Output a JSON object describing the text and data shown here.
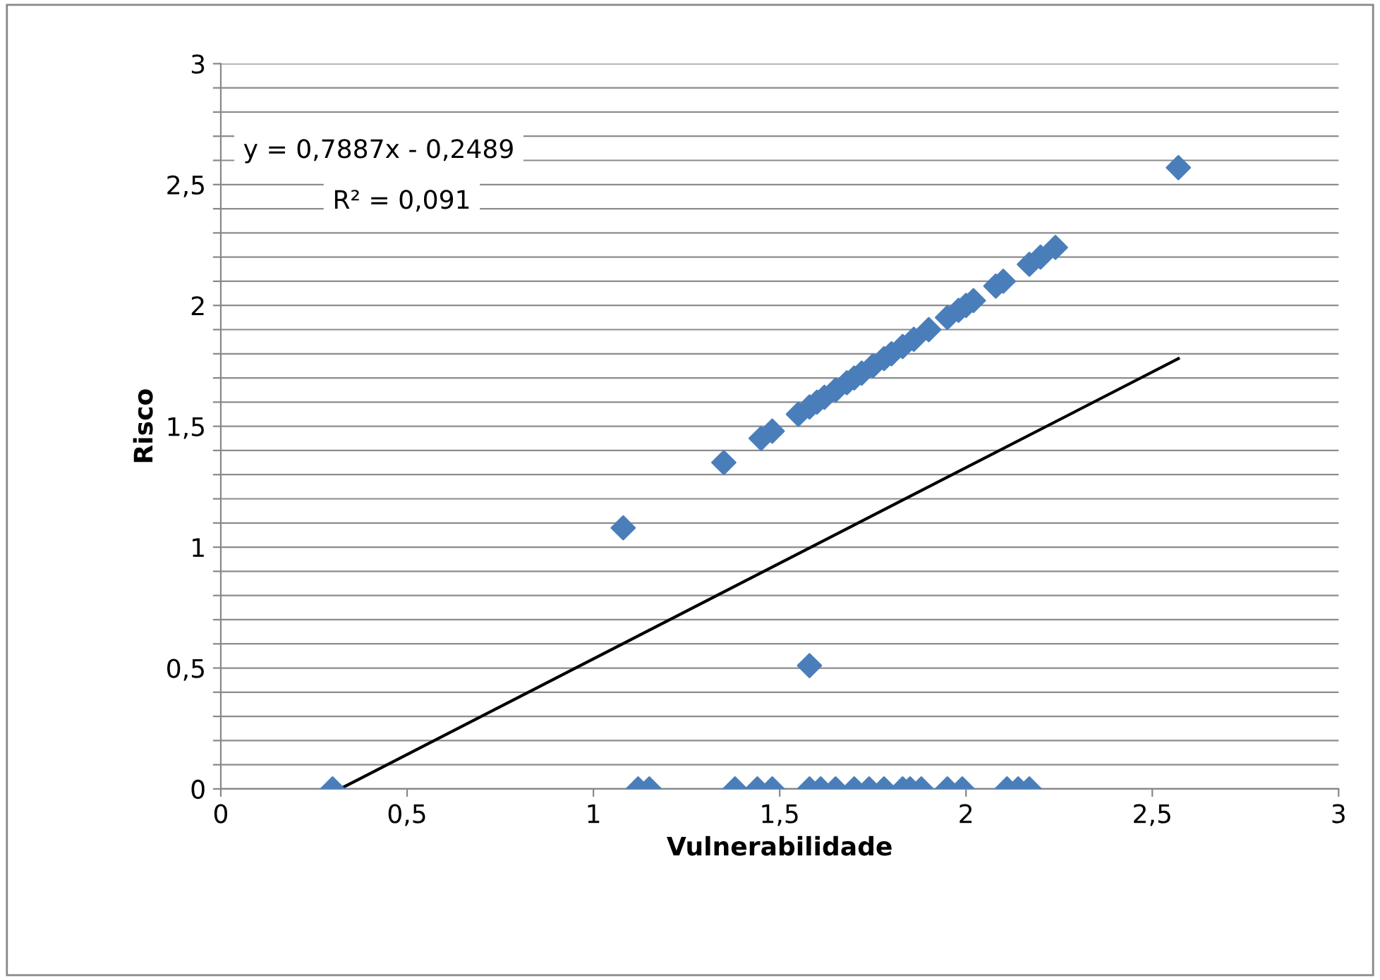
{
  "chart_data": {
    "type": "scatter",
    "xlabel": "Vulnerabilidade",
    "ylabel": "Risco",
    "series": [
      {
        "color": "#4a7ebb",
        "marker": "diamond",
        "x": [
          0.3,
          1.12,
          1.15,
          1.38,
          1.44,
          1.48,
          1.58,
          1.61,
          1.65,
          1.7,
          1.74,
          1.78,
          1.83,
          1.85,
          1.88,
          1.95,
          1.99,
          2.11,
          2.14,
          2.17,
          1.58,
          1.08,
          1.35,
          1.45,
          1.48,
          1.55,
          1.58,
          1.6,
          1.62,
          1.65,
          1.68,
          1.7,
          1.72,
          1.75,
          1.78,
          1.8,
          1.83,
          1.86,
          1.9,
          1.95,
          1.98,
          2.0,
          2.02,
          2.08,
          2.1,
          2.17,
          2.2,
          2.24,
          2.57
        ],
        "values": [
          0,
          0,
          0,
          0,
          0,
          0,
          0,
          0,
          0,
          0,
          0,
          0,
          0,
          0,
          0,
          0,
          0,
          0,
          0,
          0,
          0.51,
          1.08,
          1.35,
          1.45,
          1.48,
          1.55,
          1.58,
          1.6,
          1.62,
          1.65,
          1.68,
          1.7,
          1.72,
          1.75,
          1.78,
          1.8,
          1.83,
          1.86,
          1.9,
          1.95,
          1.98,
          2.0,
          2.02,
          2.08,
          2.1,
          2.17,
          2.2,
          2.24,
          2.57
        ]
      },
      {
        "type": "line",
        "color": "#000000",
        "marker": "none",
        "line_style": "solid",
        "x": [
          0.32,
          2.57
        ],
        "values": [
          0.0,
          1.78
        ]
      }
    ],
    "annotations": [
      "y = 0,7887x - 0,2489",
      "R² = 0,091"
    ],
    "xlim": [
      0,
      3
    ],
    "ylim": [
      0,
      3
    ],
    "xticks": [
      0,
      {
        "value": 0.5,
        "label": "0,5"
      },
      1,
      {
        "value": 1.5,
        "label": "1,5"
      },
      2,
      {
        "value": 2.5,
        "label": "2,5"
      },
      3
    ],
    "yticks": [
      0,
      {
        "value": 0.1,
        "label": null
      },
      {
        "value": 0.2,
        "label": null
      },
      {
        "value": 0.3,
        "label": null
      },
      {
        "value": 0.4,
        "label": null
      },
      {
        "value": 0.5,
        "label": "0,5"
      },
      {
        "value": 0.6,
        "label": null
      },
      {
        "value": 0.7,
        "label": null
      },
      {
        "value": 0.8,
        "label": null
      },
      {
        "value": 0.9,
        "label": null
      },
      1,
      {
        "value": 1.1,
        "label": null
      },
      {
        "value": 1.2,
        "label": null
      },
      {
        "value": 1.3,
        "label": null
      },
      {
        "value": 1.4,
        "label": null
      },
      {
        "value": 1.5,
        "label": "1,5"
      },
      {
        "value": 1.6,
        "label": null
      },
      {
        "value": 1.7,
        "label": null
      },
      {
        "value": 1.8,
        "label": null
      },
      {
        "value": 1.9,
        "label": null
      },
      2,
      {
        "value": 2.1,
        "label": null
      },
      {
        "value": 2.2,
        "label": null
      },
      {
        "value": 2.3,
        "label": null
      },
      {
        "value": 2.4,
        "label": null
      },
      {
        "value": 2.5,
        "label": "2,5"
      },
      {
        "value": 2.6,
        "label": null
      },
      {
        "value": 2.7,
        "label": null
      },
      {
        "value": 2.8,
        "label": null
      },
      {
        "value": 2.9,
        "label": null
      },
      3
    ],
    "grid": "y",
    "legend": false
  }
}
